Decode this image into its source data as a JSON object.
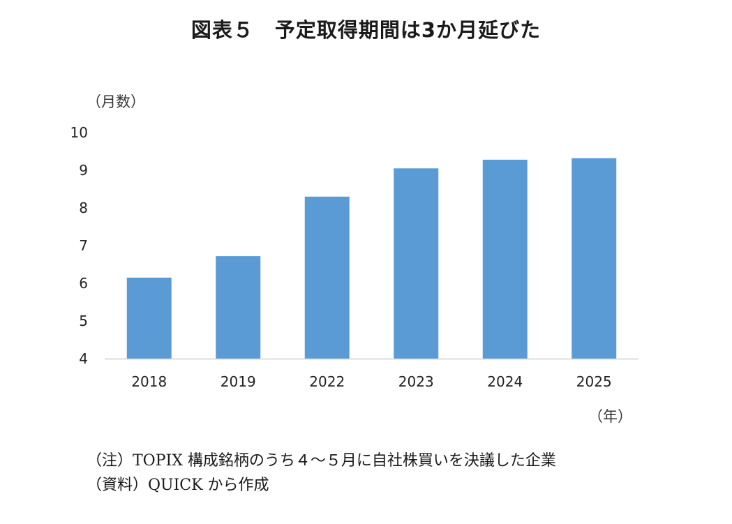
{
  "chart_data": {
    "type": "bar",
    "title": "図表５　予定取得期間は3か月延びた",
    "ylabel": "（月数）",
    "xlabel": "（年）",
    "categories": [
      "2018",
      "2019",
      "2022",
      "2023",
      "2024",
      "2025"
    ],
    "values": [
      6.15,
      6.72,
      8.3,
      9.05,
      9.28,
      9.32
    ],
    "ylim": [
      4,
      10
    ],
    "yticks": [
      4,
      5,
      6,
      7,
      8,
      9,
      10
    ],
    "grid": false,
    "bar_color": "#5b9bd5",
    "axis_color": "#d0d0d0"
  },
  "notes": {
    "note": "（注）TOPIX 構成銘柄のうち４～５月に自社株買いを決議した企業",
    "source": "（資料）QUICK から作成"
  }
}
